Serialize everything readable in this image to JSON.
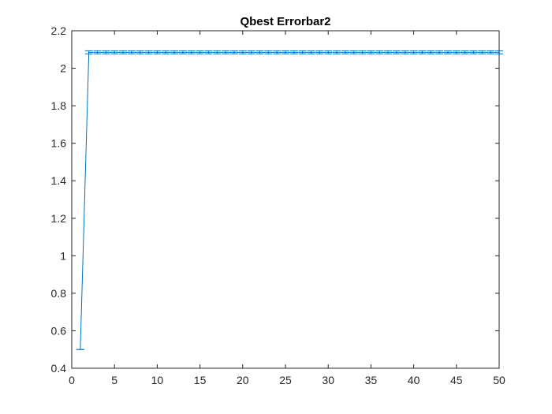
{
  "chart_data": {
    "type": "line",
    "title": "Qbest Errorbar2",
    "xlabel": "",
    "ylabel": "",
    "xlim": [
      0,
      50
    ],
    "ylim": [
      0.4,
      2.2
    ],
    "x_ticks": [
      0,
      5,
      10,
      15,
      20,
      25,
      30,
      35,
      40,
      45,
      50
    ],
    "y_ticks": [
      0.4,
      0.6,
      0.8,
      1,
      1.2,
      1.4,
      1.6,
      1.8,
      2,
      2.2
    ],
    "x_tick_labels": [
      "0",
      "5",
      "10",
      "15",
      "20",
      "25",
      "30",
      "35",
      "40",
      "45",
      "50"
    ],
    "y_tick_labels": [
      "0.4",
      "0.6",
      "0.8",
      "1",
      "1.2",
      "1.4",
      "1.6",
      "1.8",
      "2",
      "2.2"
    ],
    "grid": false,
    "legend": "none",
    "series": [
      {
        "color": "#0072BD",
        "error_bars": true,
        "x": [
          1,
          2,
          3,
          4,
          5,
          6,
          7,
          8,
          9,
          10,
          11,
          12,
          13,
          14,
          15,
          16,
          17,
          18,
          19,
          20,
          21,
          22,
          23,
          24,
          25,
          26,
          27,
          28,
          29,
          30,
          31,
          32,
          33,
          34,
          35,
          36,
          37,
          38,
          39,
          40,
          41,
          42,
          43,
          44,
          45,
          46,
          47,
          48,
          49,
          50
        ],
        "y": [
          0.5,
          2.085,
          2.085,
          2.085,
          2.085,
          2.085,
          2.085,
          2.085,
          2.085,
          2.085,
          2.085,
          2.085,
          2.085,
          2.085,
          2.085,
          2.085,
          2.085,
          2.085,
          2.085,
          2.085,
          2.085,
          2.085,
          2.085,
          2.085,
          2.085,
          2.085,
          2.085,
          2.085,
          2.085,
          2.085,
          2.085,
          2.085,
          2.085,
          2.085,
          2.085,
          2.085,
          2.085,
          2.085,
          2.085,
          2.085,
          2.085,
          2.085,
          2.085,
          2.085,
          2.085,
          2.085,
          2.085,
          2.085,
          2.085,
          2.085
        ],
        "error_low": [
          0,
          0.008,
          0.008,
          0.008,
          0.008,
          0.008,
          0.008,
          0.008,
          0.008,
          0.008,
          0.008,
          0.008,
          0.008,
          0.008,
          0.008,
          0.008,
          0.008,
          0.008,
          0.008,
          0.008,
          0.008,
          0.008,
          0.008,
          0.008,
          0.008,
          0.008,
          0.008,
          0.008,
          0.008,
          0.008,
          0.008,
          0.008,
          0.008,
          0.008,
          0.008,
          0.008,
          0.008,
          0.008,
          0.008,
          0.008,
          0.008,
          0.008,
          0.008,
          0.008,
          0.008,
          0.008,
          0.008,
          0.008,
          0.008,
          0.008
        ],
        "error_high": [
          0,
          0.008,
          0.008,
          0.008,
          0.008,
          0.008,
          0.008,
          0.008,
          0.008,
          0.008,
          0.008,
          0.008,
          0.008,
          0.008,
          0.008,
          0.008,
          0.008,
          0.008,
          0.008,
          0.008,
          0.008,
          0.008,
          0.008,
          0.008,
          0.008,
          0.008,
          0.008,
          0.008,
          0.008,
          0.008,
          0.008,
          0.008,
          0.008,
          0.008,
          0.008,
          0.008,
          0.008,
          0.008,
          0.008,
          0.008,
          0.008,
          0.008,
          0.008,
          0.008,
          0.008,
          0.008,
          0.008,
          0.008,
          0.008,
          0.008
        ]
      }
    ]
  }
}
